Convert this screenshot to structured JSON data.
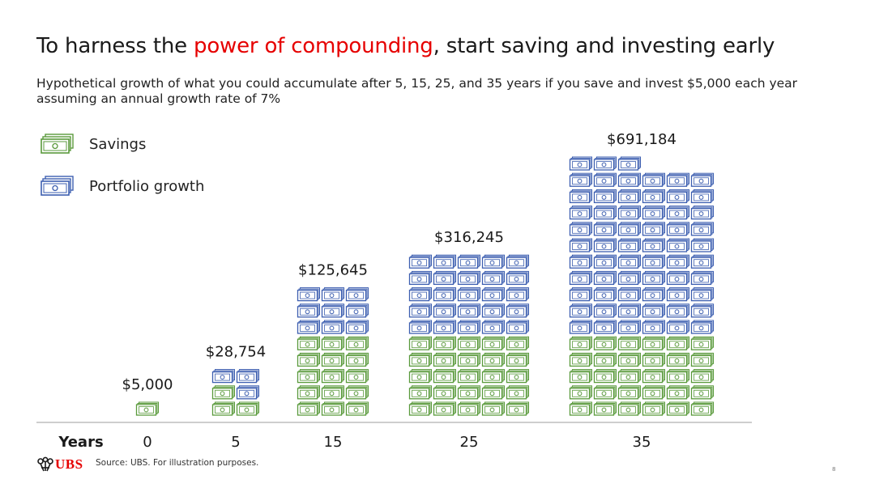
{
  "slide": {
    "title_pre": "To harness the ",
    "title_highlight": "power of compounding",
    "title_post": ", start saving and investing early",
    "subtitle": "Hypothetical growth of what you could accumulate after 5, 15, 25, and 35 years if you save and invest $5,000 each year assuming an annual growth rate of 7%",
    "source": "Source: UBS. For illustration purposes.",
    "page_number": "8",
    "brand": "UBS"
  },
  "legend": [
    {
      "label": "Savings",
      "color": "#5a9a3c",
      "icon": "money-stack-icon"
    },
    {
      "label": "Portfolio growth",
      "color": "#3d5fb0",
      "icon": "money-stack-icon"
    }
  ],
  "colors": {
    "accent": "#e60000",
    "savings": "#5a9a3c",
    "growth": "#3d5fb0",
    "axis": "#bdbdbd"
  },
  "chart_data": {
    "type": "bar",
    "xlabel": "Years",
    "categories": [
      "0",
      "5",
      "15",
      "25",
      "35"
    ],
    "values": [
      5000,
      28754,
      125645,
      316245,
      691184
    ],
    "value_labels": [
      "$5,000",
      "$28,754",
      "$125,645",
      "$316,245",
      "$691,184"
    ],
    "series": [
      {
        "name": "Savings",
        "values": [
          5000,
          30000,
          80000,
          130000,
          180000
        ]
      },
      {
        "name": "Portfolio growth",
        "values": [
          0,
          -1246,
          45645,
          186245,
          511184
        ]
      }
    ],
    "icon_counts": {
      "savings": [
        1,
        3,
        15,
        25,
        30
      ],
      "growth": [
        0,
        3,
        9,
        25,
        63
      ]
    }
  }
}
